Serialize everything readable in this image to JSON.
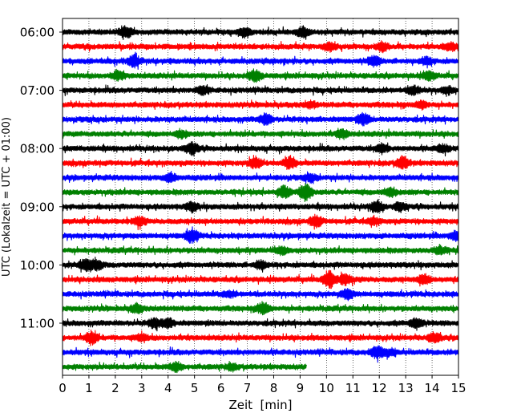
{
  "chart_data": {
    "type": "line",
    "chart_kind": "helicorder",
    "xlabel": "Zeit  [min]",
    "ylabel": "UTC (Lokalzeit = UTC + 01:00)",
    "xlim": [
      0,
      15
    ],
    "x_ticks": [
      "0",
      "1",
      "2",
      "3",
      "4",
      "5",
      "6",
      "7",
      "8",
      "9",
      "10",
      "11",
      "12",
      "13",
      "14",
      "15"
    ],
    "y_tick_labels": [
      "06:00",
      "07:00",
      "08:00",
      "09:00",
      "10:00",
      "11:00"
    ],
    "y_tick_traces": [
      0,
      4,
      8,
      12,
      16,
      20
    ],
    "minutes_per_trace": 15,
    "vertical_grid": "dotted",
    "trace_colors": [
      "#000000",
      "#ff0000",
      "#0000ff",
      "#008000"
    ],
    "traces": [
      {
        "start": "06:00",
        "end_minute": 15,
        "color": "#000000",
        "events": [
          [
            2.4,
            0.9
          ],
          [
            6.9,
            0.7
          ],
          [
            9.1,
            0.7
          ]
        ]
      },
      {
        "start": "06:15",
        "end_minute": 15,
        "color": "#ff0000",
        "events": [
          [
            10.1,
            0.6
          ],
          [
            12.1,
            0.6
          ],
          [
            14.7,
            0.5
          ]
        ]
      },
      {
        "start": "06:30",
        "end_minute": 15,
        "color": "#0000ff",
        "events": [
          [
            2.7,
            0.9
          ],
          [
            11.8,
            0.7
          ],
          [
            13.8,
            0.5
          ]
        ]
      },
      {
        "start": "06:45",
        "end_minute": 15,
        "color": "#008000",
        "events": [
          [
            2.1,
            0.6
          ],
          [
            7.3,
            0.8
          ],
          [
            13.9,
            0.6
          ]
        ]
      },
      {
        "start": "07:00",
        "end_minute": 15,
        "color": "#000000",
        "events": [
          [
            5.3,
            0.6
          ],
          [
            13.3,
            0.6
          ],
          [
            14.6,
            0.5
          ]
        ]
      },
      {
        "start": "07:15",
        "end_minute": 15,
        "color": "#ff0000",
        "events": [
          [
            9.4,
            0.4
          ],
          [
            13.6,
            0.5
          ]
        ]
      },
      {
        "start": "07:30",
        "end_minute": 15,
        "color": "#0000ff",
        "events": [
          [
            7.7,
            0.8
          ],
          [
            11.4,
            0.8
          ]
        ]
      },
      {
        "start": "07:45",
        "end_minute": 15,
        "color": "#008000",
        "events": [
          [
            4.5,
            0.5
          ],
          [
            10.6,
            0.6
          ]
        ]
      },
      {
        "start": "08:00",
        "end_minute": 15,
        "color": "#000000",
        "events": [
          [
            4.9,
            0.9
          ],
          [
            12.1,
            0.6
          ],
          [
            14.4,
            0.6
          ]
        ]
      },
      {
        "start": "08:15",
        "end_minute": 15,
        "color": "#ff0000",
        "events": [
          [
            7.3,
            0.8
          ],
          [
            8.6,
            0.8
          ],
          [
            12.9,
            0.9
          ]
        ]
      },
      {
        "start": "08:30",
        "end_minute": 15,
        "color": "#0000ff",
        "events": [
          [
            4.1,
            0.6
          ],
          [
            9.4,
            0.5
          ]
        ]
      },
      {
        "start": "08:45",
        "end_minute": 15,
        "color": "#008000",
        "events": [
          [
            8.4,
            0.9
          ],
          [
            9.2,
            1.4
          ],
          [
            12.4,
            0.6
          ]
        ]
      },
      {
        "start": "09:00",
        "end_minute": 15,
        "color": "#000000",
        "events": [
          [
            4.9,
            0.6
          ],
          [
            11.9,
            0.9
          ],
          [
            12.8,
            0.6
          ]
        ]
      },
      {
        "start": "09:15",
        "end_minute": 15,
        "color": "#ff0000",
        "events": [
          [
            2.9,
            0.6
          ],
          [
            9.6,
            0.8
          ],
          [
            11.8,
            0.5
          ]
        ]
      },
      {
        "start": "09:30",
        "end_minute": 15,
        "color": "#0000ff",
        "events": [
          [
            4.9,
            1.0
          ],
          [
            14.9,
            0.6
          ]
        ]
      },
      {
        "start": "09:45",
        "end_minute": 15,
        "color": "#008000",
        "events": [
          [
            8.3,
            0.5
          ],
          [
            14.3,
            0.6
          ]
        ]
      },
      {
        "start": "10:00",
        "end_minute": 15,
        "color": "#000000",
        "events": [
          [
            0.9,
            1.0
          ],
          [
            1.3,
            0.7
          ],
          [
            7.5,
            0.6
          ]
        ]
      },
      {
        "start": "10:15",
        "end_minute": 15,
        "color": "#ff0000",
        "events": [
          [
            10.1,
            1.3
          ],
          [
            10.7,
            0.8
          ],
          [
            13.7,
            0.7
          ]
        ]
      },
      {
        "start": "10:30",
        "end_minute": 15,
        "color": "#0000ff",
        "events": [
          [
            10.8,
            0.7
          ],
          [
            6.3,
            0.4
          ]
        ]
      },
      {
        "start": "10:45",
        "end_minute": 15,
        "color": "#008000",
        "events": [
          [
            2.8,
            0.6
          ],
          [
            7.6,
            0.9
          ]
        ]
      },
      {
        "start": "11:00",
        "end_minute": 15,
        "color": "#000000",
        "events": [
          [
            3.5,
            0.7
          ],
          [
            4.0,
            0.6
          ],
          [
            13.4,
            0.8
          ]
        ]
      },
      {
        "start": "11:15",
        "end_minute": 15,
        "color": "#ff0000",
        "events": [
          [
            1.1,
            0.9
          ],
          [
            3.0,
            0.5
          ],
          [
            14.1,
            0.7
          ]
        ]
      },
      {
        "start": "11:30",
        "end_minute": 15,
        "color": "#0000ff",
        "events": [
          [
            11.9,
            0.9
          ],
          [
            12.4,
            0.5
          ]
        ]
      },
      {
        "start": "11:45",
        "end_minute": 9.25,
        "color": "#008000",
        "events": [
          [
            4.3,
            0.6
          ],
          [
            6.4,
            0.4
          ]
        ]
      }
    ]
  }
}
